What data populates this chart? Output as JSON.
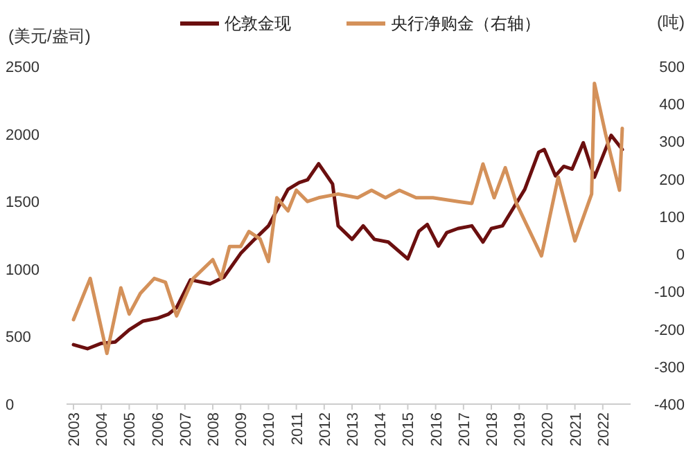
{
  "chart_data": {
    "type": "line",
    "ylabel": "(美元/盎司)",
    "y2label": "(吨)",
    "legend": "top",
    "grid": false,
    "xlim": [
      2002.75,
      2023
    ],
    "xticks": [
      2003,
      2004,
      2005,
      2006,
      2007,
      2008,
      2009,
      2010,
      2011,
      2012,
      2013,
      2014,
      2015,
      2016,
      2017,
      2018,
      2019,
      2020,
      2021,
      2022
    ],
    "ylim": [
      0,
      2500
    ],
    "yticks": [
      0,
      500,
      1000,
      1500,
      2000,
      2500
    ],
    "y2lim": [
      -400,
      500
    ],
    "y2ticks": [
      -400,
      -300,
      -200,
      -100,
      0,
      100,
      200,
      300,
      400,
      500
    ],
    "series": [
      {
        "name": "伦敦金现",
        "color": "#6b0f0f",
        "x": [
          2003.0,
          2003.5,
          2004.0,
          2004.5,
          2005.0,
          2005.5,
          2006.0,
          2006.4,
          2006.7,
          2007.2,
          2007.9,
          2008.4,
          2009.0,
          2009.5,
          2010.0,
          2010.7,
          2011.1,
          2011.4,
          2011.8,
          2012.3,
          2012.5,
          2013.0,
          2013.4,
          2013.8,
          2014.3,
          2015.0,
          2015.4,
          2015.7,
          2016.1,
          2016.4,
          2016.8,
          2017.3,
          2017.7,
          2018.0,
          2018.4,
          2018.8,
          2019.2,
          2019.7,
          2019.9,
          2020.3,
          2020.6,
          2020.9,
          2021.3,
          2021.7,
          2022.3,
          2022.7
        ],
        "values": [
          440,
          410,
          450,
          460,
          550,
          615,
          635,
          665,
          715,
          920,
          890,
          940,
          1115,
          1220,
          1320,
          1590,
          1640,
          1660,
          1780,
          1630,
          1320,
          1220,
          1320,
          1220,
          1200,
          1075,
          1280,
          1330,
          1170,
          1270,
          1300,
          1320,
          1200,
          1300,
          1320,
          1455,
          1590,
          1865,
          1885,
          1690,
          1760,
          1740,
          1935,
          1680,
          1990,
          1885
        ]
      },
      {
        "name": "央行净购金（右轴）",
        "color": "#d4915a",
        "axis": "y2",
        "x": [
          2003.0,
          2003.6,
          2004.2,
          2004.7,
          2005.0,
          2005.4,
          2005.9,
          2006.3,
          2006.7,
          2007.3,
          2008.0,
          2008.3,
          2008.6,
          2009.0,
          2009.3,
          2009.7,
          2010.0,
          2010.3,
          2010.7,
          2011.0,
          2011.4,
          2011.8,
          2012.5,
          2013.2,
          2013.7,
          2014.2,
          2014.7,
          2015.3,
          2015.9,
          2016.8,
          2017.3,
          2017.7,
          2018.1,
          2018.5,
          2018.9,
          2019.8,
          2020.4,
          2021.0,
          2021.6,
          2021.7,
          2022.1,
          2022.6,
          2022.7
        ],
        "values": [
          -175,
          -65,
          -265,
          -90,
          -160,
          -105,
          -65,
          -75,
          -165,
          -65,
          -15,
          -65,
          20,
          20,
          60,
          40,
          -20,
          150,
          115,
          170,
          140,
          150,
          160,
          150,
          170,
          150,
          170,
          150,
          150,
          140,
          135,
          240,
          150,
          230,
          135,
          -5,
          205,
          35,
          160,
          455,
          320,
          170,
          335
        ]
      }
    ]
  }
}
